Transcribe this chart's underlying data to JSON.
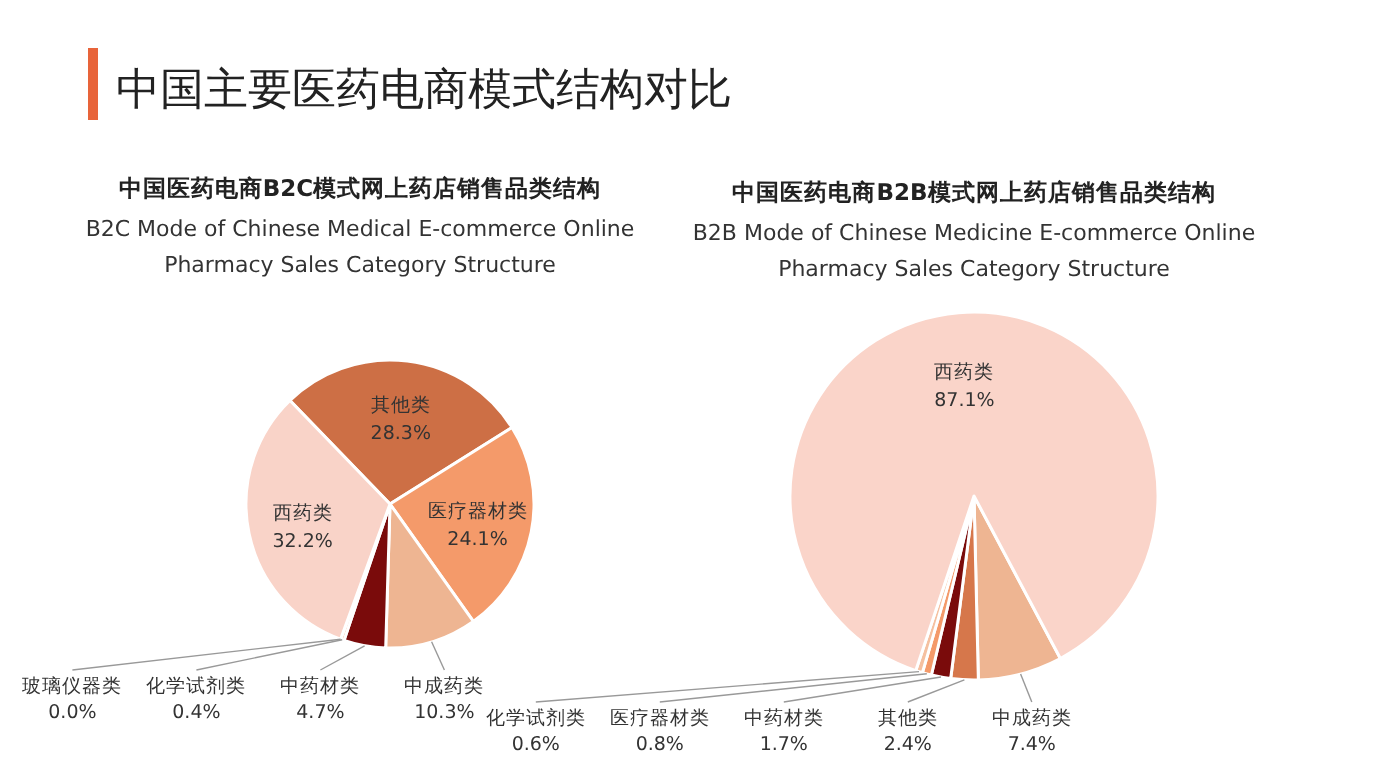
{
  "chart_data": [
    {
      "type": "other",
      "title": "中国主要医药电商模式结构对比"
    },
    {
      "type": "pie",
      "title": "中国医药电商B2C模式网上药店销售品类结构",
      "subtitle": "B2C Mode of Chinese Medical E-commerce Online Pharmacy Sales Category Structure",
      "categories": [
        "其他类",
        "医疗器材类",
        "中成药类",
        "中药材类",
        "化学试剂类",
        "玻璃仪器类",
        "西药类"
      ],
      "values": [
        28.3,
        24.1,
        10.3,
        4.7,
        0.4,
        0.0,
        32.2
      ],
      "value_labels": [
        "28.3%",
        "24.1%",
        "10.3%",
        "4.7%",
        "0.4%",
        "0.0%",
        "32.2%"
      ],
      "colors": [
        "#cd6f45",
        "#f49a6a",
        "#eeb592",
        "#7a0b0b",
        "#f5c0a0",
        "#f8cbb8",
        "#f9d3c8"
      ]
    },
    {
      "type": "pie",
      "title": "中国医药电商B2B模式网上药店销售品类结构",
      "subtitle": "B2B Mode of Chinese Medicine E-commerce Online Pharmacy Sales Category Structure",
      "categories": [
        "中成药类",
        "其他类",
        "中药材类",
        "医疗器材类",
        "化学试剂类",
        "西药类"
      ],
      "values": [
        7.4,
        2.4,
        1.7,
        0.8,
        0.6,
        87.1
      ],
      "value_labels": [
        "7.4%",
        "2.4%",
        "1.7%",
        "0.8%",
        "0.6%",
        "87.1%"
      ],
      "colors": [
        "#eeb592",
        "#d6774b",
        "#7a0b0b",
        "#f49a6a",
        "#f5c0a0",
        "#fad4c9"
      ]
    }
  ]
}
